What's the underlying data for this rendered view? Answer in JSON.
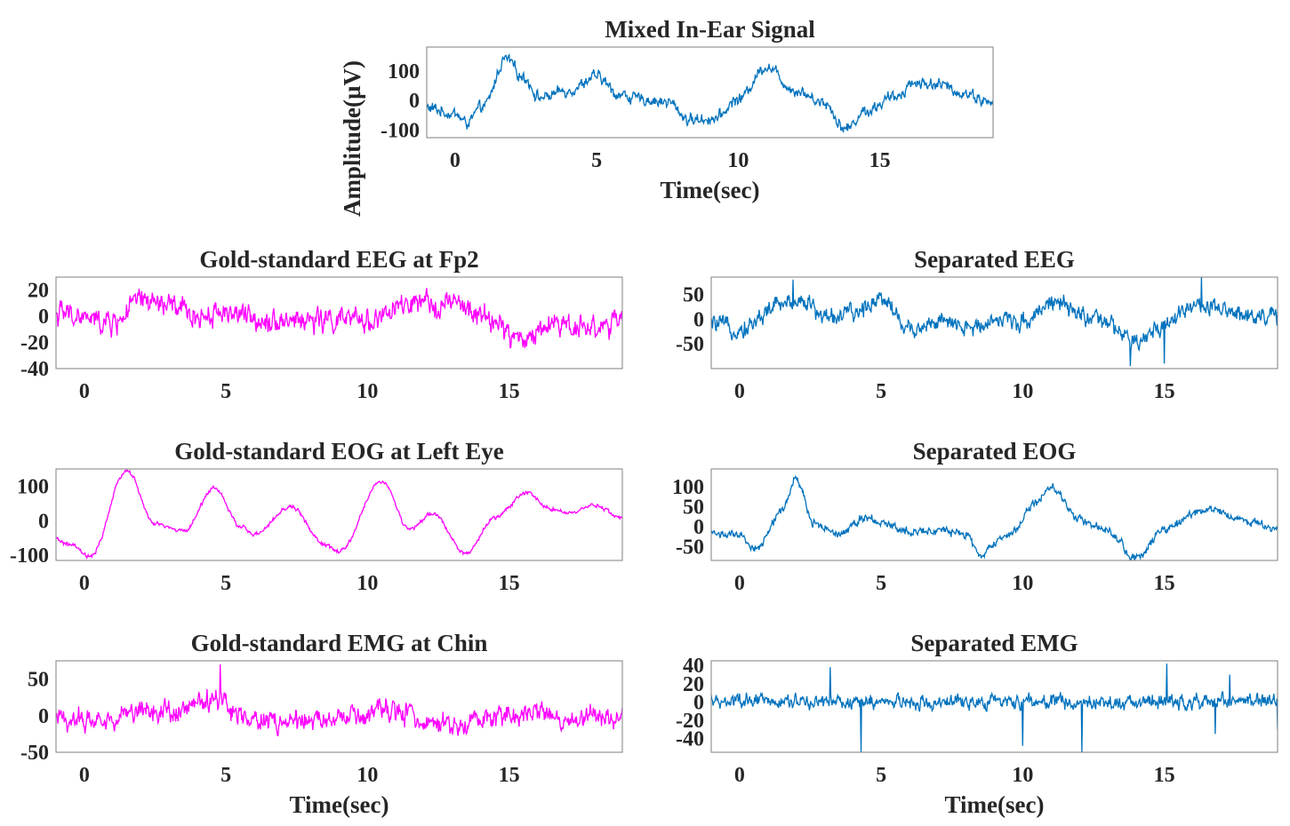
{
  "colors": {
    "separated": "#0072BD",
    "gold_standard": "#FF00FF",
    "axes": "#262626",
    "frame": "#7f7f7f"
  },
  "chart_data": [
    {
      "id": "mixed",
      "type": "line",
      "title": "Mixed In-Ear Signal",
      "xlabel": "Time(sec)",
      "ylabel": "Amplitude(µV)",
      "xlim": [
        -1,
        19
      ],
      "ylim": [
        -125,
        180
      ],
      "xticks": [
        0,
        5,
        10,
        15
      ],
      "yticks": [
        -100,
        0,
        100
      ],
      "series": [
        {
          "color": "#0072BD",
          "noise": 30,
          "keypoints": [
            [
              -1,
              -25
            ],
            [
              0,
              -45
            ],
            [
              0.4,
              -75
            ],
            [
              1,
              -20
            ],
            [
              1.8,
              140
            ],
            [
              2.4,
              80
            ],
            [
              3,
              10
            ],
            [
              4,
              35
            ],
            [
              5,
              80
            ],
            [
              5.8,
              20
            ],
            [
              6.5,
              5
            ],
            [
              7.5,
              -5
            ],
            [
              8.3,
              -65
            ],
            [
              9.2,
              -60
            ],
            [
              10,
              5
            ],
            [
              11,
              115
            ],
            [
              12,
              35
            ],
            [
              13,
              -5
            ],
            [
              13.8,
              -95
            ],
            [
              14.5,
              -35
            ],
            [
              15.5,
              10
            ],
            [
              16.2,
              60
            ],
            [
              17,
              55
            ],
            [
              18,
              25
            ],
            [
              19,
              -10
            ]
          ]
        }
      ]
    },
    {
      "id": "eeg-gold",
      "type": "line",
      "title": "Gold-standard EEG at Fp2",
      "xlabel": "",
      "ylabel": "",
      "xlim": [
        -1,
        19
      ],
      "ylim": [
        -40,
        30
      ],
      "xticks": [
        0,
        5,
        10,
        15
      ],
      "yticks": [
        -40,
        -20,
        0,
        20
      ],
      "series": [
        {
          "color": "#FF00FF",
          "noise": 14,
          "keypoints": [
            [
              -1,
              2
            ],
            [
              1,
              -5
            ],
            [
              2,
              12
            ],
            [
              3,
              8
            ],
            [
              4,
              0
            ],
            [
              5,
              4
            ],
            [
              6,
              -2
            ],
            [
              8,
              -3
            ],
            [
              10,
              -3
            ],
            [
              11.5,
              8
            ],
            [
              13,
              10
            ],
            [
              14,
              0
            ],
            [
              15.5,
              -18
            ],
            [
              16.5,
              -5
            ],
            [
              18,
              -8
            ],
            [
              19,
              -5
            ]
          ]
        }
      ]
    },
    {
      "id": "eeg-sep",
      "type": "line",
      "title": "Separated EEG",
      "xlabel": "",
      "ylabel": "",
      "xlim": [
        -1,
        19
      ],
      "ylim": [
        -100,
        85
      ],
      "xticks": [
        0,
        5,
        10,
        15
      ],
      "yticks": [
        -50,
        0,
        50
      ],
      "series": [
        {
          "color": "#0072BD",
          "noise": 28,
          "keypoints": [
            [
              -1,
              -10
            ],
            [
              0,
              -20
            ],
            [
              1.5,
              30
            ],
            [
              2.2,
              40
            ],
            [
              3,
              5
            ],
            [
              4,
              10
            ],
            [
              5,
              45
            ],
            [
              6,
              -20
            ],
            [
              7,
              -5
            ],
            [
              8,
              -20
            ],
            [
              9,
              0
            ],
            [
              10,
              -5
            ],
            [
              11,
              35
            ],
            [
              12,
              10
            ],
            [
              13,
              -10
            ],
            [
              14,
              -50
            ],
            [
              15,
              -10
            ],
            [
              16,
              30
            ],
            [
              17,
              15
            ],
            [
              19,
              5
            ]
          ]
        }
      ]
    },
    {
      "id": "eog-gold",
      "type": "line",
      "title": "Gold-standard EOG at Left Eye",
      "xlabel": "",
      "ylabel": "",
      "xlim": [
        -1,
        19
      ],
      "ylim": [
        -115,
        150
      ],
      "xticks": [
        0,
        5,
        10,
        15
      ],
      "yticks": [
        -100,
        0,
        100
      ],
      "series": [
        {
          "color": "#FF00FF",
          "noise": 9,
          "keypoints": [
            [
              -1,
              -55
            ],
            [
              -0.5,
              -70
            ],
            [
              0.2,
              -105
            ],
            [
              1.5,
              145
            ],
            [
              2.5,
              -10
            ],
            [
              3.5,
              -30
            ],
            [
              4.6,
              95
            ],
            [
              5.5,
              -15
            ],
            [
              6,
              -40
            ],
            [
              7.3,
              40
            ],
            [
              8.5,
              -70
            ],
            [
              9,
              -90
            ],
            [
              10.5,
              115
            ],
            [
              11.5,
              -25
            ],
            [
              12.3,
              20
            ],
            [
              13.5,
              -95
            ],
            [
              14.5,
              10
            ],
            [
              15.6,
              80
            ],
            [
              16.5,
              35
            ],
            [
              17.2,
              20
            ],
            [
              18,
              45
            ],
            [
              19,
              10
            ]
          ]
        }
      ]
    },
    {
      "id": "eog-sep",
      "type": "line",
      "title": "Separated EOG",
      "xlabel": "",
      "ylabel": "",
      "xlim": [
        -1,
        19
      ],
      "ylim": [
        -85,
        145
      ],
      "xticks": [
        0,
        5,
        10,
        15
      ],
      "yticks": [
        -50,
        0,
        50,
        100
      ],
      "series": [
        {
          "color": "#0072BD",
          "noise": 16,
          "keypoints": [
            [
              -1,
              -15
            ],
            [
              0,
              -25
            ],
            [
              0.6,
              -55
            ],
            [
              1.5,
              40
            ],
            [
              2,
              120
            ],
            [
              2.6,
              10
            ],
            [
              3.5,
              -15
            ],
            [
              4.5,
              25
            ],
            [
              5.2,
              5
            ],
            [
              6,
              -10
            ],
            [
              7,
              -10
            ],
            [
              8,
              -20
            ],
            [
              8.5,
              -70
            ],
            [
              9.5,
              -20
            ],
            [
              10.5,
              60
            ],
            [
              11,
              100
            ],
            [
              12,
              20
            ],
            [
              13,
              -10
            ],
            [
              14,
              -80
            ],
            [
              15,
              -10
            ],
            [
              16,
              30
            ],
            [
              16.7,
              45
            ],
            [
              18,
              10
            ],
            [
              19,
              0
            ]
          ]
        }
      ]
    },
    {
      "id": "emg-gold",
      "type": "line",
      "title": "Gold-standard EMG at Chin",
      "xlabel": "Time(sec)",
      "ylabel": "",
      "xlim": [
        -1,
        19
      ],
      "ylim": [
        -50,
        75
      ],
      "xticks": [
        0,
        5,
        10,
        15
      ],
      "yticks": [
        -50,
        0,
        50
      ],
      "series": [
        {
          "color": "#FF00FF",
          "noise": 22,
          "keypoints": [
            [
              -1,
              -5
            ],
            [
              1,
              -5
            ],
            [
              2,
              10
            ],
            [
              3,
              5
            ],
            [
              4,
              15
            ],
            [
              4.8,
              25
            ],
            [
              5.5,
              0
            ],
            [
              7,
              -10
            ],
            [
              9,
              -5
            ],
            [
              11,
              5
            ],
            [
              12,
              -5
            ],
            [
              13,
              -15
            ],
            [
              14,
              -5
            ],
            [
              15,
              0
            ],
            [
              16,
              5
            ],
            [
              17,
              -5
            ],
            [
              19,
              0
            ]
          ]
        }
      ]
    },
    {
      "id": "emg-sep",
      "type": "line",
      "title": "Separated EMG",
      "xlabel": "Time(sec)",
      "ylabel": "",
      "xlim": [
        -1,
        19
      ],
      "ylim": [
        -55,
        45
      ],
      "xticks": [
        0,
        5,
        10,
        15
      ],
      "yticks": [
        -40,
        -20,
        0,
        20,
        40
      ],
      "series": [
        {
          "color": "#0072BD",
          "noise": 12,
          "keypoints": [
            [
              -1,
              0
            ],
            [
              19,
              0
            ]
          ]
        }
      ]
    }
  ]
}
